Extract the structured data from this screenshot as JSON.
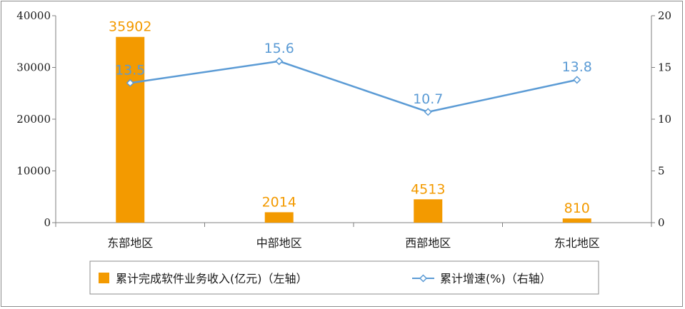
{
  "chart_data": {
    "type": "bar+line",
    "categories": [
      "东部地区",
      "中部地区",
      "西部地区",
      "东北地区"
    ],
    "series": [
      {
        "name": "累计完成软件业务收入(亿元)（左轴）",
        "type": "bar",
        "axis": "left",
        "values": [
          35902,
          2014,
          4513,
          810
        ],
        "labels": [
          "35902",
          "2014",
          "4513",
          "810"
        ],
        "color": "#f39a00"
      },
      {
        "name": "累计增速(%)（右轴）",
        "type": "line",
        "axis": "right",
        "values": [
          13.5,
          15.6,
          10.7,
          13.8
        ],
        "labels": [
          "13.5",
          "15.6",
          "10.7",
          "13.8"
        ],
        "color": "#5b9bd5"
      }
    ],
    "y_left": {
      "min": 0,
      "max": 40000,
      "ticks": [
        0,
        10000,
        20000,
        30000,
        40000
      ],
      "tick_labels": [
        "0",
        "10000",
        "20000",
        "30000",
        "40000"
      ]
    },
    "y_right": {
      "min": 0,
      "max": 20,
      "ticks": [
        0,
        5,
        10,
        15,
        20
      ],
      "tick_labels": [
        "0",
        "5",
        "10",
        "15",
        "20"
      ]
    },
    "grid": false,
    "legend_position": "bottom"
  }
}
